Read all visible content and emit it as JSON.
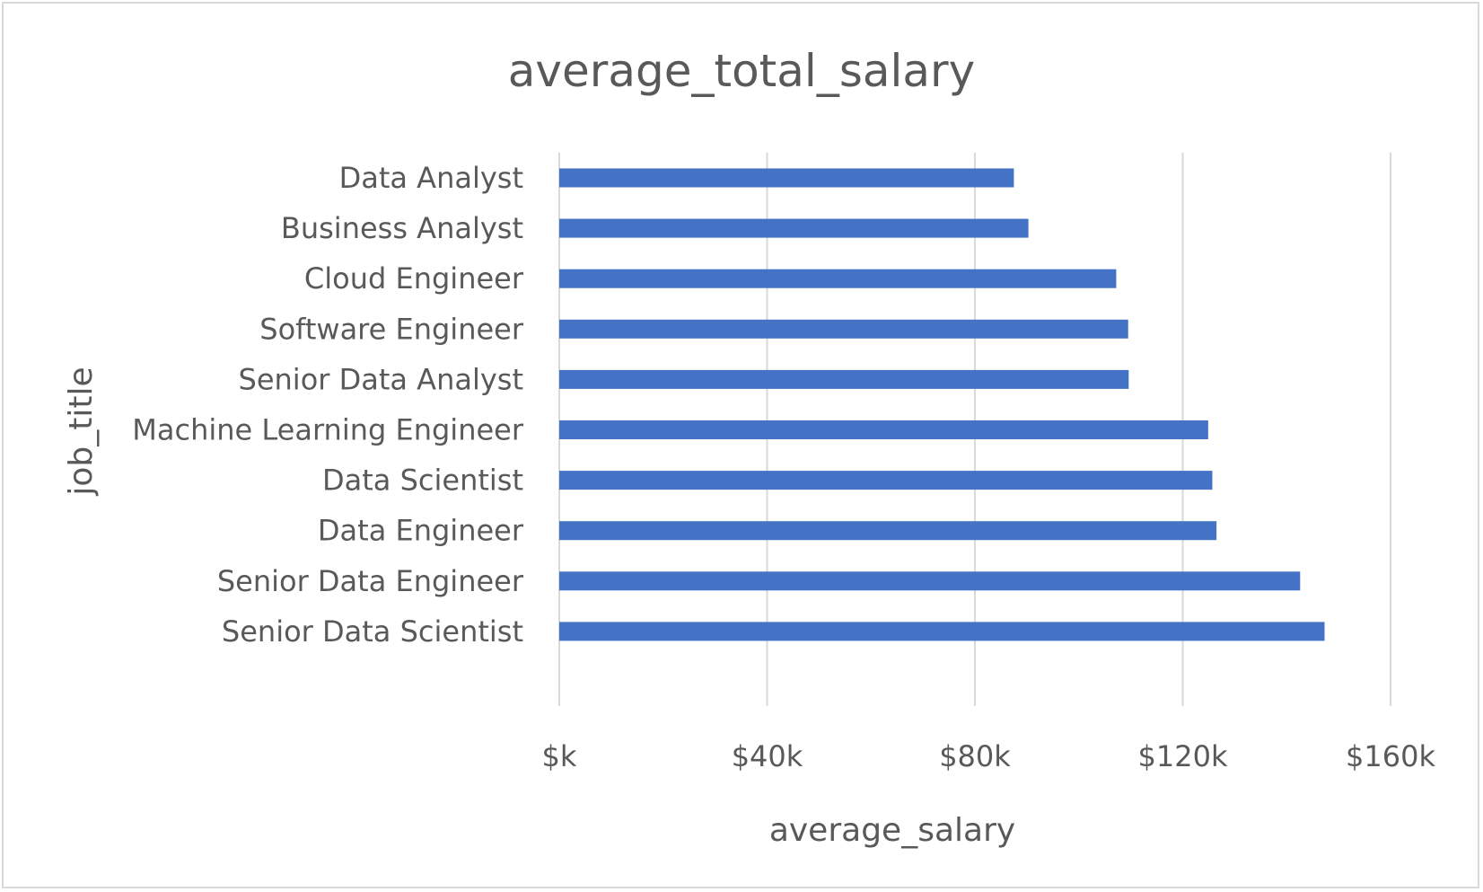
{
  "chart_data": {
    "type": "bar",
    "orientation": "horizontal",
    "title": "average_total_salary",
    "xlabel": "average_salary",
    "ylabel": "job_title",
    "categories": [
      "Data Analyst",
      "Business Analyst",
      "Cloud Engineer",
      "Software Engineer",
      "Senior Data Analyst",
      "Machine Learning Engineer",
      "Data Scientist",
      "Data Engineer",
      "Senior Data Engineer",
      "Senior Data Scientist"
    ],
    "values": [
      87500,
      90300,
      107200,
      109500,
      109600,
      124900,
      125700,
      126500,
      142600,
      147300
    ],
    "xlim": [
      0,
      160000
    ],
    "xticks": [
      0,
      40000,
      80000,
      120000,
      160000
    ],
    "xtick_labels": [
      "$k",
      "$40k",
      "$80k",
      "$120k",
      "$160k"
    ],
    "grid": "vertical",
    "bar_color": "#4472C4",
    "grid_color": "#D9D9D9",
    "text_color": "#595959"
  }
}
